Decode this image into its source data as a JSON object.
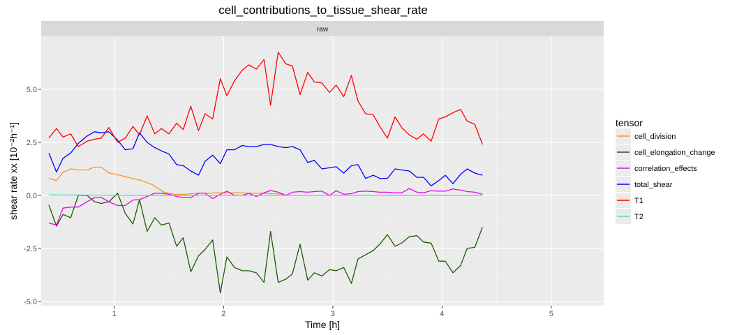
{
  "chart_data": {
    "type": "line",
    "title": "cell_contributions_to_tissue_shear_rate",
    "facet_label": "raw",
    "xlabel": "Time [h]",
    "ylabel": "shear rate xx [10⁻²h⁻¹]",
    "xlim": [
      0.33,
      5.48
    ],
    "ylim": [
      -5.2,
      7.5
    ],
    "x_ticks": [
      1,
      2,
      3,
      4,
      5
    ],
    "x_tick_labels": [
      "1",
      "2",
      "3",
      "4",
      "5"
    ],
    "y_ticks": [
      -5,
      -2.5,
      0,
      2.5,
      5
    ],
    "y_tick_labels": [
      "-5.0",
      "-2.5",
      "0.0",
      "2.5",
      "5.0"
    ],
    "grid": true,
    "legend": {
      "title": "tensor",
      "position": "right"
    },
    "series": [
      {
        "name": "cell_division",
        "color": "#F8961E",
        "points": [
          [
            0.4,
            0.8
          ],
          [
            0.47,
            0.7
          ],
          [
            0.53,
            1.1
          ],
          [
            0.6,
            1.25
          ],
          [
            0.67,
            1.2
          ],
          [
            0.75,
            1.2
          ],
          [
            0.82,
            1.33
          ],
          [
            0.88,
            1.33
          ],
          [
            0.95,
            1.06
          ],
          [
            1.05,
            0.95
          ],
          [
            1.15,
            0.82
          ],
          [
            1.25,
            0.7
          ],
          [
            1.35,
            0.5
          ],
          [
            1.45,
            0.16
          ],
          [
            1.55,
            0.05
          ],
          [
            1.65,
            0.05
          ],
          [
            1.75,
            0.1
          ],
          [
            1.85,
            0.1
          ],
          [
            1.95,
            0.12
          ],
          [
            2.05,
            0.12
          ],
          [
            2.15,
            0.12
          ],
          [
            2.25,
            0.1
          ],
          [
            2.35,
            0.1
          ],
          [
            2.45,
            0.08
          ],
          [
            2.55,
            0.05
          ]
        ]
      },
      {
        "name": "cell_elongation_change",
        "color": "#1A5C00",
        "points": [
          [
            0.4,
            -0.45
          ],
          [
            0.47,
            -1.45
          ],
          [
            0.53,
            -0.9
          ],
          [
            0.6,
            -1.05
          ],
          [
            0.67,
            0.0
          ],
          [
            0.75,
            0.0
          ],
          [
            0.82,
            -0.3
          ],
          [
            0.88,
            -0.38
          ],
          [
            0.95,
            -0.3
          ],
          [
            1.03,
            0.1
          ],
          [
            1.1,
            -0.85
          ],
          [
            1.17,
            -1.35
          ],
          [
            1.23,
            -0.2
          ],
          [
            1.3,
            -1.7
          ],
          [
            1.37,
            -1.05
          ],
          [
            1.43,
            -1.4
          ],
          [
            1.5,
            -1.3
          ],
          [
            1.57,
            -2.4
          ],
          [
            1.63,
            -2.0
          ],
          [
            1.7,
            -3.6
          ],
          [
            1.77,
            -2.85
          ],
          [
            1.83,
            -2.55
          ],
          [
            1.9,
            -2.1
          ],
          [
            1.97,
            -4.6
          ],
          [
            2.03,
            -2.9
          ],
          [
            2.1,
            -3.4
          ],
          [
            2.17,
            -3.55
          ],
          [
            2.23,
            -3.55
          ],
          [
            2.3,
            -3.65
          ],
          [
            2.37,
            -4.1
          ],
          [
            2.43,
            -1.7
          ],
          [
            2.5,
            -4.1
          ],
          [
            2.57,
            -3.95
          ],
          [
            2.63,
            -3.7
          ],
          [
            2.7,
            -2.3
          ],
          [
            2.77,
            -4.0
          ],
          [
            2.83,
            -3.65
          ],
          [
            2.9,
            -3.8
          ],
          [
            2.97,
            -3.5
          ],
          [
            3.03,
            -3.55
          ],
          [
            3.1,
            -3.4
          ],
          [
            3.17,
            -4.15
          ],
          [
            3.23,
            -3.0
          ],
          [
            3.3,
            -2.8
          ],
          [
            3.37,
            -2.6
          ],
          [
            3.43,
            -2.3
          ],
          [
            3.5,
            -1.85
          ],
          [
            3.57,
            -2.4
          ],
          [
            3.63,
            -2.25
          ],
          [
            3.7,
            -1.95
          ],
          [
            3.77,
            -1.9
          ],
          [
            3.83,
            -2.2
          ],
          [
            3.9,
            -2.25
          ],
          [
            3.97,
            -3.1
          ],
          [
            4.03,
            -3.1
          ],
          [
            4.1,
            -3.65
          ],
          [
            4.17,
            -3.3
          ],
          [
            4.23,
            -2.5
          ],
          [
            4.3,
            -2.45
          ],
          [
            4.37,
            -1.5
          ]
        ]
      },
      {
        "name": "correlation_effects",
        "color": "#EE00EE",
        "points": [
          [
            0.4,
            -1.3
          ],
          [
            0.47,
            -1.4
          ],
          [
            0.53,
            -0.6
          ],
          [
            0.6,
            -0.55
          ],
          [
            0.67,
            -0.55
          ],
          [
            0.75,
            -0.3
          ],
          [
            0.82,
            -0.1
          ],
          [
            0.88,
            -0.1
          ],
          [
            0.95,
            -0.3
          ],
          [
            1.03,
            -0.48
          ],
          [
            1.1,
            -0.48
          ],
          [
            1.17,
            -0.22
          ],
          [
            1.23,
            -0.2
          ],
          [
            1.3,
            -0.05
          ],
          [
            1.37,
            0.1
          ],
          [
            1.43,
            0.1
          ],
          [
            1.5,
            0.05
          ],
          [
            1.57,
            -0.05
          ],
          [
            1.63,
            -0.1
          ],
          [
            1.7,
            -0.1
          ],
          [
            1.77,
            0.1
          ],
          [
            1.83,
            0.1
          ],
          [
            1.9,
            -0.15
          ],
          [
            1.97,
            0.05
          ],
          [
            2.03,
            0.2
          ],
          [
            2.1,
            0.0
          ],
          [
            2.17,
            0.0
          ],
          [
            2.23,
            0.1
          ],
          [
            2.3,
            -0.05
          ],
          [
            2.37,
            0.12
          ],
          [
            2.43,
            0.23
          ],
          [
            2.5,
            0.15
          ],
          [
            2.57,
            0.0
          ],
          [
            2.63,
            0.15
          ],
          [
            2.7,
            0.18
          ],
          [
            2.77,
            0.15
          ],
          [
            2.83,
            0.18
          ],
          [
            2.9,
            0.2
          ],
          [
            2.97,
            0.0
          ],
          [
            3.03,
            0.22
          ],
          [
            3.1,
            0.05
          ],
          [
            3.17,
            0.08
          ],
          [
            3.23,
            0.18
          ],
          [
            3.3,
            0.2
          ],
          [
            3.37,
            0.18
          ],
          [
            3.43,
            0.15
          ],
          [
            3.5,
            0.15
          ],
          [
            3.57,
            0.12
          ],
          [
            3.63,
            0.12
          ],
          [
            3.7,
            0.32
          ],
          [
            3.77,
            0.15
          ],
          [
            3.83,
            0.12
          ],
          [
            3.9,
            0.22
          ],
          [
            3.97,
            0.2
          ],
          [
            4.03,
            0.2
          ],
          [
            4.1,
            0.3
          ],
          [
            4.17,
            0.25
          ],
          [
            4.23,
            0.18
          ],
          [
            4.3,
            0.15
          ],
          [
            4.37,
            0.05
          ]
        ]
      },
      {
        "name": "total_shear",
        "color": "#0000FF",
        "points": [
          [
            0.4,
            2.0
          ],
          [
            0.47,
            1.1
          ],
          [
            0.53,
            1.75
          ],
          [
            0.6,
            2.0
          ],
          [
            0.67,
            2.45
          ],
          [
            0.75,
            2.8
          ],
          [
            0.82,
            3.0
          ],
          [
            0.88,
            2.95
          ],
          [
            0.95,
            3.0
          ],
          [
            1.03,
            2.6
          ],
          [
            1.1,
            2.15
          ],
          [
            1.17,
            2.2
          ],
          [
            1.23,
            2.95
          ],
          [
            1.3,
            2.5
          ],
          [
            1.37,
            2.25
          ],
          [
            1.43,
            2.1
          ],
          [
            1.5,
            1.95
          ],
          [
            1.57,
            1.45
          ],
          [
            1.63,
            1.4
          ],
          [
            1.7,
            1.15
          ],
          [
            1.77,
            0.95
          ],
          [
            1.83,
            1.6
          ],
          [
            1.9,
            1.9
          ],
          [
            1.97,
            1.5
          ],
          [
            2.03,
            2.15
          ],
          [
            2.1,
            2.15
          ],
          [
            2.17,
            2.35
          ],
          [
            2.23,
            2.3
          ],
          [
            2.3,
            2.3
          ],
          [
            2.37,
            2.4
          ],
          [
            2.43,
            2.4
          ],
          [
            2.5,
            2.3
          ],
          [
            2.57,
            2.25
          ],
          [
            2.63,
            2.3
          ],
          [
            2.7,
            2.15
          ],
          [
            2.77,
            1.55
          ],
          [
            2.83,
            1.65
          ],
          [
            2.9,
            1.25
          ],
          [
            2.97,
            1.3
          ],
          [
            3.03,
            1.35
          ],
          [
            3.1,
            1.05
          ],
          [
            3.17,
            1.4
          ],
          [
            3.23,
            1.45
          ],
          [
            3.3,
            0.8
          ],
          [
            3.37,
            0.95
          ],
          [
            3.43,
            0.8
          ],
          [
            3.5,
            0.8
          ],
          [
            3.57,
            1.25
          ],
          [
            3.63,
            1.2
          ],
          [
            3.7,
            1.15
          ],
          [
            3.77,
            0.85
          ],
          [
            3.83,
            0.85
          ],
          [
            3.9,
            0.45
          ],
          [
            3.97,
            0.7
          ],
          [
            4.03,
            0.95
          ],
          [
            4.1,
            0.55
          ],
          [
            4.17,
            1.0
          ],
          [
            4.23,
            1.25
          ],
          [
            4.3,
            1.05
          ],
          [
            4.37,
            0.95
          ]
        ]
      },
      {
        "name": "T1",
        "color": "#FF0000",
        "points": [
          [
            0.4,
            2.7
          ],
          [
            0.47,
            3.15
          ],
          [
            0.53,
            2.75
          ],
          [
            0.6,
            2.9
          ],
          [
            0.67,
            2.3
          ],
          [
            0.75,
            2.55
          ],
          [
            0.82,
            2.65
          ],
          [
            0.88,
            2.7
          ],
          [
            0.95,
            3.2
          ],
          [
            1.03,
            2.5
          ],
          [
            1.1,
            2.7
          ],
          [
            1.17,
            3.25
          ],
          [
            1.23,
            2.85
          ],
          [
            1.3,
            3.75
          ],
          [
            1.37,
            2.9
          ],
          [
            1.43,
            3.15
          ],
          [
            1.5,
            2.9
          ],
          [
            1.57,
            3.4
          ],
          [
            1.63,
            3.1
          ],
          [
            1.7,
            4.2
          ],
          [
            1.77,
            3.05
          ],
          [
            1.83,
            3.85
          ],
          [
            1.9,
            3.6
          ],
          [
            1.97,
            5.5
          ],
          [
            2.03,
            4.7
          ],
          [
            2.1,
            5.4
          ],
          [
            2.17,
            5.9
          ],
          [
            2.23,
            6.15
          ],
          [
            2.3,
            5.95
          ],
          [
            2.37,
            6.4
          ],
          [
            2.43,
            4.25
          ],
          [
            2.5,
            6.75
          ],
          [
            2.57,
            6.2
          ],
          [
            2.63,
            6.1
          ],
          [
            2.7,
            4.75
          ],
          [
            2.77,
            5.8
          ],
          [
            2.83,
            5.35
          ],
          [
            2.9,
            5.3
          ],
          [
            2.97,
            4.85
          ],
          [
            3.03,
            5.2
          ],
          [
            3.1,
            4.65
          ],
          [
            3.17,
            5.65
          ],
          [
            3.23,
            4.45
          ],
          [
            3.3,
            3.85
          ],
          [
            3.37,
            3.8
          ],
          [
            3.43,
            3.25
          ],
          [
            3.5,
            2.7
          ],
          [
            3.57,
            3.7
          ],
          [
            3.63,
            3.2
          ],
          [
            3.7,
            2.85
          ],
          [
            3.77,
            2.65
          ],
          [
            3.83,
            2.9
          ],
          [
            3.9,
            2.55
          ],
          [
            3.97,
            3.6
          ],
          [
            4.03,
            3.7
          ],
          [
            4.1,
            3.9
          ],
          [
            4.17,
            4.05
          ],
          [
            4.23,
            3.5
          ],
          [
            4.3,
            3.35
          ],
          [
            4.37,
            2.4
          ]
        ]
      },
      {
        "name": "T2",
        "color": "#40E0D0",
        "points": [
          [
            0.4,
            0.02
          ],
          [
            0.8,
            0.01
          ],
          [
            1.2,
            0.0
          ],
          [
            1.6,
            0.0
          ],
          [
            2.0,
            0.0
          ],
          [
            2.4,
            0.0
          ],
          [
            2.8,
            0.0
          ],
          [
            3.2,
            0.0
          ],
          [
            3.6,
            0.0
          ],
          [
            4.0,
            0.0
          ],
          [
            4.37,
            0.0
          ]
        ]
      }
    ]
  }
}
